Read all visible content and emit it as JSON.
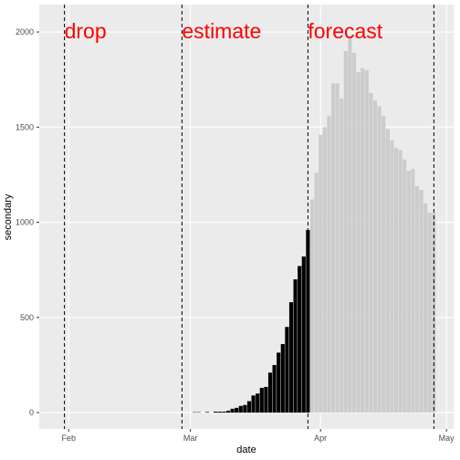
{
  "chart_data": {
    "type": "bar",
    "x_label": "date",
    "y_label": "secondary",
    "xlim": [
      25,
      123.7
    ],
    "ylim": [
      -86,
      2144
    ],
    "xticks": [
      {
        "value": 32,
        "label": "Feb"
      },
      {
        "value": 61,
        "label": "Mar"
      },
      {
        "value": 92,
        "label": "Apr"
      },
      {
        "value": 122,
        "label": "May"
      }
    ],
    "yticks": [
      0,
      500,
      1000,
      1500,
      2000
    ],
    "grid": true,
    "series": [
      {
        "color": "#000000",
        "x": [
          62,
          63,
          64,
          65,
          66,
          67,
          68,
          69,
          70,
          71,
          72,
          73,
          74,
          75,
          76,
          77,
          78,
          79,
          80,
          81,
          82,
          83,
          84,
          85,
          86,
          87,
          88,
          89
        ],
        "values": [
          2,
          2,
          0,
          3,
          0,
          5,
          5,
          5,
          10,
          20,
          25,
          35,
          40,
          60,
          90,
          100,
          130,
          135,
          210,
          250,
          315,
          360,
          450,
          580,
          700,
          770,
          820,
          960
        ]
      },
      {
        "color": "#cccccc",
        "x": [
          90,
          91,
          92,
          93,
          94,
          95,
          96,
          97,
          98,
          99,
          100,
          101,
          102,
          103,
          104,
          105,
          106,
          107,
          108,
          109,
          110,
          111,
          112,
          113,
          114,
          115,
          116,
          117,
          118,
          119
        ],
        "values": [
          1120,
          1260,
          1460,
          1500,
          1560,
          1730,
          1730,
          1650,
          1900,
          1980,
          1890,
          1790,
          1810,
          1800,
          1680,
          1640,
          1610,
          1560,
          1490,
          1430,
          1390,
          1380,
          1330,
          1270,
          1280,
          1190,
          1170,
          1100,
          1050,
          1050
        ]
      }
    ],
    "vlines": [
      {
        "x": 31,
        "label": "drop"
      },
      {
        "x": 59,
        "label": "estimate"
      },
      {
        "x": 89,
        "label": "forecast"
      },
      {
        "x": 119
      }
    ]
  }
}
